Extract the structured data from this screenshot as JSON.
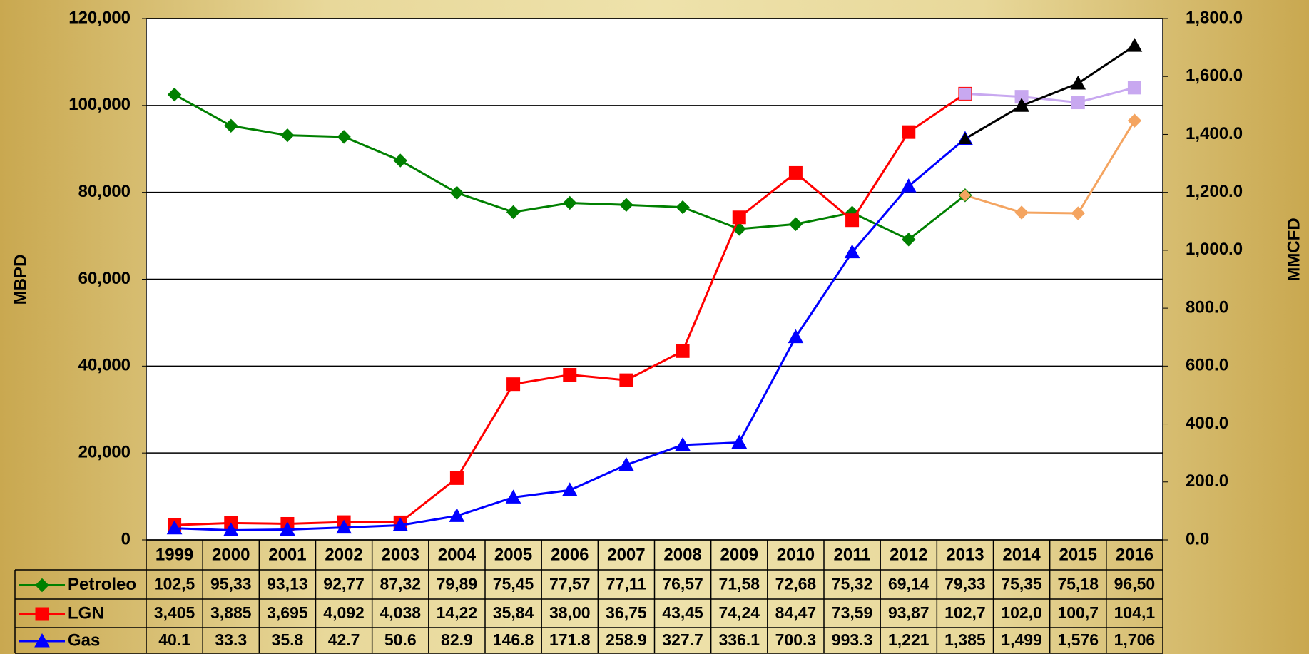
{
  "chart_data": {
    "type": "line",
    "categories": [
      "1999",
      "2000",
      "2001",
      "2002",
      "2003",
      "2004",
      "2005",
      "2006",
      "2007",
      "2008",
      "2009",
      "2010",
      "2011",
      "2012",
      "2013",
      "2014",
      "2015",
      "2016"
    ],
    "ylabel": "MBPD",
    "y2label": "MMCFD",
    "ylim": [
      0,
      120000
    ],
    "yticks": [
      0,
      {
        "value": 20000,
        "label": "20,000"
      },
      {
        "value": 40000,
        "label": "40,000"
      },
      {
        "value": 60000,
        "label": "60,000"
      },
      {
        "value": 80000,
        "label": "80,000"
      },
      {
        "value": 100000,
        "label": "100,000"
      },
      {
        "value": 120000,
        "label": "120,000"
      }
    ],
    "y2lim": [
      0,
      1800
    ],
    "y2ticks": [
      {
        "value": 0,
        "label": "0.0"
      },
      {
        "value": 200,
        "label": "200.0"
      },
      {
        "value": 400,
        "label": "400.0"
      },
      {
        "value": 600,
        "label": "600.0"
      },
      {
        "value": 800,
        "label": "800.0"
      },
      {
        "value": 1000,
        "label": "1,000.0"
      },
      {
        "value": 1200,
        "label": "1,200.0"
      },
      {
        "value": 1400,
        "label": "1,400.0"
      },
      {
        "value": 1600,
        "label": "1,600.0"
      },
      {
        "value": 1800,
        "label": "1,800.0"
      }
    ],
    "grid": true,
    "forecast_from": "2013",
    "series": [
      {
        "name": "Petroleo",
        "color": "#008000",
        "forecast_color": "#f4a460",
        "marker": "diamond",
        "values": [
          102500,
          95330,
          93130,
          92770,
          87320,
          79890,
          75450,
          77570,
          77110,
          76570,
          71580,
          72680,
          75320,
          69140,
          79330,
          75350,
          75180,
          96500
        ],
        "value_labels": [
          "102,5",
          "95,33",
          "93,13",
          "92,77",
          "87,32",
          "79,89",
          "75,45",
          "77,57",
          "77,11",
          "76,57",
          "71,58",
          "72,68",
          "75,32",
          "69,14",
          "79,33",
          "75,35",
          "75,18",
          "96,50"
        ]
      },
      {
        "name": "LGN",
        "color": "#ff0000",
        "forecast_color": "#c8a8f0",
        "marker": "square",
        "values": [
          3405,
          3885,
          3695,
          4092,
          4038,
          14220,
          35840,
          38000,
          36750,
          43450,
          74240,
          84470,
          73590,
          93870,
          102700,
          102000,
          100700,
          104100
        ],
        "value_labels": [
          "3,405",
          "3,885",
          "3,695",
          "4,092",
          "4,038",
          "14,22",
          "35,84",
          "38,00",
          "36,75",
          "43,45",
          "74,24",
          "84,47",
          "73,59",
          "93,87",
          "102,7",
          "102,0",
          "100,7",
          "104,1"
        ]
      },
      {
        "name": "Gas",
        "color": "#0000ff",
        "forecast_color": "#000000",
        "marker": "triangle",
        "axis": "y2",
        "values": [
          40.1,
          33.3,
          35.8,
          42.7,
          50.6,
          82.9,
          146.8,
          171.8,
          258.9,
          327.7,
          336.1,
          700.3,
          993.3,
          1221,
          1385,
          1499,
          1576,
          1706
        ],
        "value_labels": [
          "40.1",
          "33.3",
          "35.8",
          "42.7",
          "50.6",
          "82.9",
          "146.8",
          "171.8",
          "258.9",
          "327.7",
          "336.1",
          "700.3",
          "993.3",
          "1,221",
          "1,385",
          "1,499",
          "1,576",
          "1,706"
        ]
      }
    ]
  }
}
